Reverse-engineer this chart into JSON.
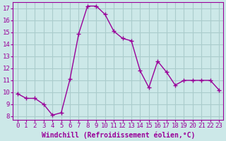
{
  "x": [
    0,
    1,
    2,
    3,
    4,
    5,
    6,
    7,
    8,
    9,
    10,
    11,
    12,
    13,
    14,
    15,
    16,
    17,
    18,
    19,
    20,
    21,
    22,
    23
  ],
  "y": [
    9.9,
    9.5,
    9.5,
    9.0,
    8.1,
    8.3,
    11.1,
    14.9,
    17.2,
    17.2,
    16.5,
    15.1,
    14.5,
    14.3,
    11.8,
    10.4,
    12.6,
    11.7,
    10.6,
    11.0,
    11.0,
    11.0,
    11.0,
    10.2
  ],
  "line_color": "#990099",
  "marker": "+",
  "marker_size": 4,
  "bg_color": "#cce8e8",
  "grid_color": "#aacccc",
  "xlabel": "Windchill (Refroidissement éolien,°C)",
  "ylim_min": 7.7,
  "ylim_max": 17.5,
  "xlim_min": -0.5,
  "xlim_max": 23.5,
  "yticks": [
    8,
    9,
    10,
    11,
    12,
    13,
    14,
    15,
    16,
    17
  ],
  "xticks": [
    0,
    1,
    2,
    3,
    4,
    5,
    6,
    7,
    8,
    9,
    10,
    11,
    12,
    13,
    14,
    15,
    16,
    17,
    18,
    19,
    20,
    21,
    22,
    23
  ],
  "tick_color": "#990099",
  "label_color": "#990099",
  "tick_fontsize": 6.5,
  "xlabel_fontsize": 7,
  "line_width": 1.0,
  "spine_color": "#990099"
}
